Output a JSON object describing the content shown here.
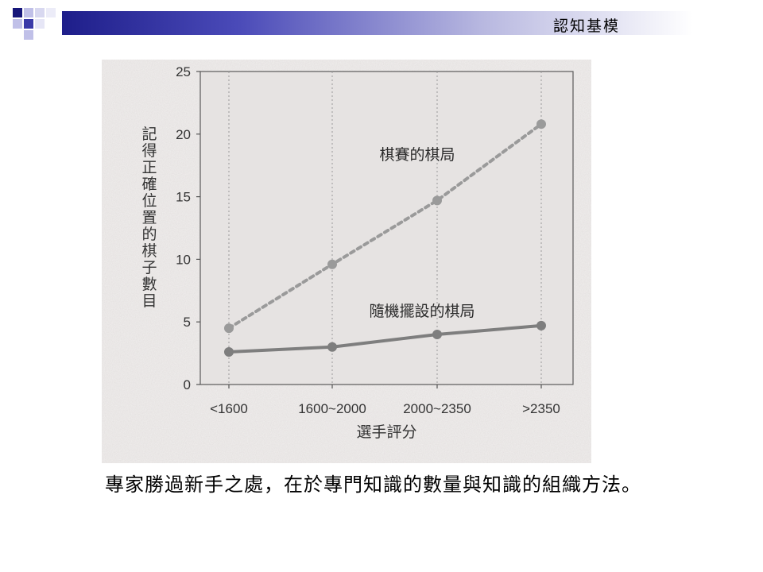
{
  "header": {
    "title": "認知基模"
  },
  "chart_data": {
    "type": "line",
    "categories": [
      "<1600",
      "1600~2000",
      "2000~2350",
      ">2350"
    ],
    "category_labels": [
      "<1600",
      "1600~2000",
      "2000~2350",
      ">2350"
    ],
    "series": [
      {
        "name": "棋賽的棋局",
        "values": [
          4.5,
          9.6,
          14.7,
          20.8
        ],
        "style": "dashed",
        "color": "#9a9a9a"
      },
      {
        "name": "隨機擺設的棋局",
        "values": [
          2.6,
          3.0,
          4.0,
          4.7
        ],
        "style": "solid",
        "color": "#7e7e7e"
      }
    ],
    "ylim": [
      0,
      25
    ],
    "yticks": [
      "0",
      "5",
      "10",
      "15",
      "20",
      "25"
    ],
    "ylabel": "記得正確位置的棋子數目",
    "xlabel": "選手評分",
    "grid": "vertical dashed"
  },
  "caption": {
    "text": "專家勝過新手之處，在於專門知識的數量與知識的組織方法。"
  }
}
